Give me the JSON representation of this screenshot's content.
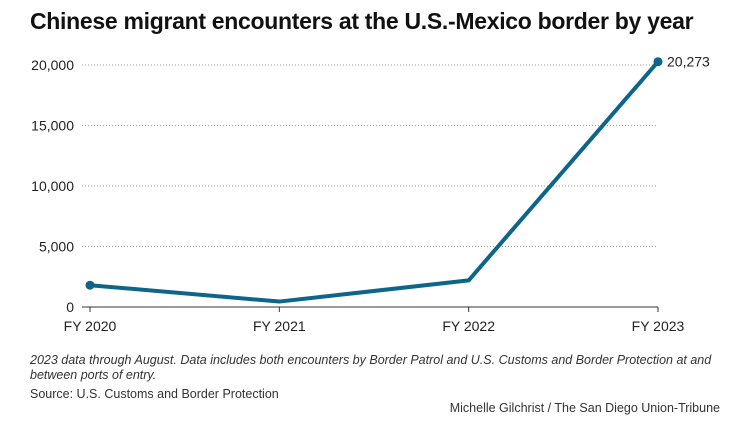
{
  "chart_data": {
    "type": "line",
    "title": "Chinese migrant encounters at the U.S.-Mexico border by year",
    "xlabel": "",
    "ylabel": "",
    "categories": [
      "FY 2020",
      "FY 2021",
      "FY 2022",
      "FY 2023"
    ],
    "series": [
      {
        "values": [
          1800,
          450,
          2200,
          20273
        ]
      }
    ],
    "ylim": [
      0,
      20000
    ],
    "yticks": [
      0,
      5000,
      10000,
      15000,
      20000
    ],
    "ytick_labels": [
      "0",
      "5,000",
      "10,000",
      "15,000",
      "20,000"
    ],
    "grid": "horizontal dotted",
    "line_color": "#0d6589",
    "data_labels": [
      {
        "index": 3,
        "text": "20,273"
      }
    ],
    "endpoint_markers": [
      0,
      3
    ]
  },
  "note": "2023 data through August. Data includes both encounters by Border Patrol and U.S. Customs and Border Protection at and between ports of entry.",
  "source": "Source: U.S. Customs and Border Protection",
  "credit": "Michelle Gilchrist / The San Diego Union-Tribune"
}
